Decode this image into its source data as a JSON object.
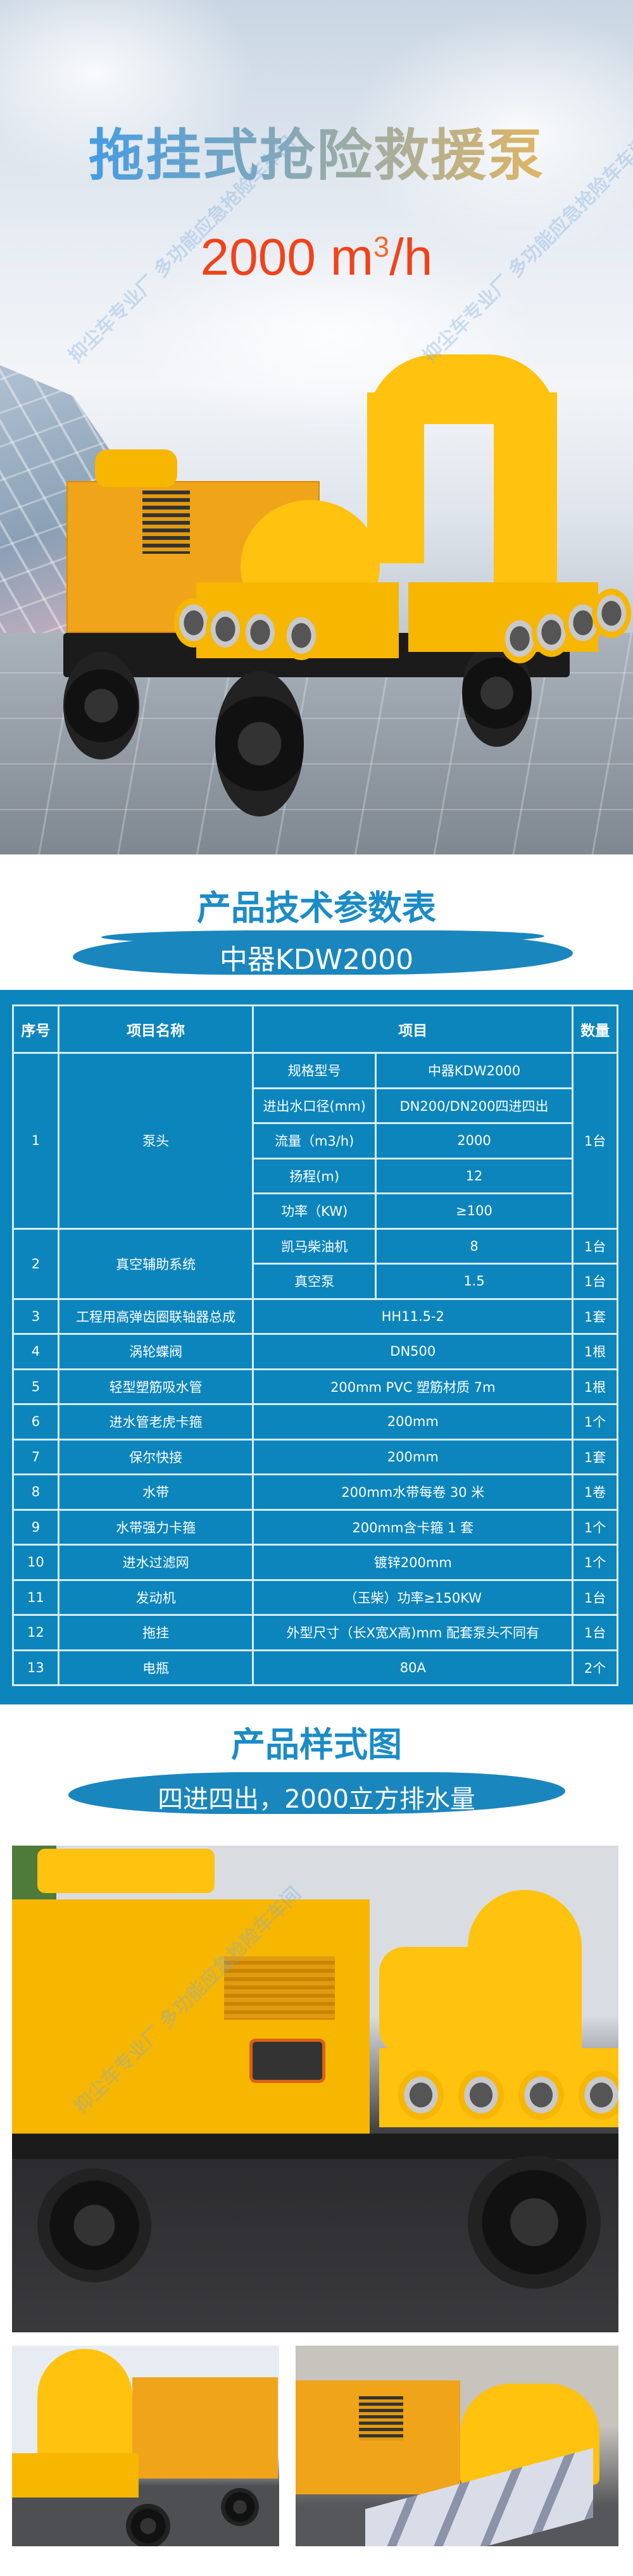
{
  "hero": {
    "title": "拖挂式抢险救援泵",
    "flow_value": "2000 m",
    "flow_sup": "3",
    "flow_unit": "/h",
    "watermark": "抑尘车专业厂 多功能应急抢险车车间"
  },
  "spec_section": {
    "title": "产品技术参数表",
    "model_banner": "中器KDW2000",
    "table": {
      "headers": [
        "序号",
        "项目名称",
        "项目",
        "数量"
      ],
      "row1": {
        "no": "1",
        "name": "泵头",
        "qty": "1台",
        "sub": [
          {
            "label": "规格型号",
            "value": "中器KDW2000"
          },
          {
            "label": "进出水口径(mm)",
            "value": "DN200/DN200四进四出"
          },
          {
            "label": "流量（m3/h)",
            "value": "2000"
          },
          {
            "label": "扬程(m)",
            "value": "12"
          },
          {
            "label": "功率（KW)",
            "value": "≥100"
          }
        ]
      },
      "row2": {
        "no": "2",
        "name": "真空辅助系统",
        "sub": [
          {
            "label": "凯马柴油机",
            "value": "8",
            "qty": "1台"
          },
          {
            "label": "真空泵",
            "value": "1.5",
            "qty": "1台"
          }
        ]
      },
      "rows": [
        {
          "no": "3",
          "name": "工程用高弹齿圈联轴器总成",
          "spec": "HH11.5-2",
          "qty": "1套"
        },
        {
          "no": "4",
          "name": "涡轮蝶阀",
          "spec": "DN500",
          "qty": "1根"
        },
        {
          "no": "5",
          "name": "轻型塑筋吸水管",
          "spec": "200mm PVC 塑筋材质 7m",
          "qty": "1根"
        },
        {
          "no": "6",
          "name": "进水管老虎卡箍",
          "spec": "200mm",
          "qty": "1个"
        },
        {
          "no": "7",
          "name": "保尔快接",
          "spec": "200mm",
          "qty": "1套"
        },
        {
          "no": "8",
          "name": "水带",
          "spec": "200mm水带每卷 30 米",
          "qty": "1卷"
        },
        {
          "no": "9",
          "name": "水带强力卡箍",
          "spec": "200mm含卡箍 1 套",
          "qty": "1个"
        },
        {
          "no": "10",
          "name": "进水过滤网",
          "spec": "镀锌200mm",
          "qty": "1个"
        },
        {
          "no": "11",
          "name": "发动机",
          "spec": "（玉柴）功率≥150KW",
          "qty": "1台"
        },
        {
          "no": "12",
          "name": "拖挂",
          "spec": "外型尺寸（长X宽X高)mm 配套泵头不同有",
          "qty": "1台"
        },
        {
          "no": "13",
          "name": "电瓶",
          "spec": "80A",
          "qty": "2个"
        }
      ]
    }
  },
  "style_section": {
    "title": "产品样式图",
    "banner": "四进四出，2000立方排水量"
  },
  "colors": {
    "brand_blue": "#0c85bd",
    "title_blue": "#1b8cc7",
    "flow_red": "#f0431a",
    "pump_yellow": "#f7b600"
  }
}
